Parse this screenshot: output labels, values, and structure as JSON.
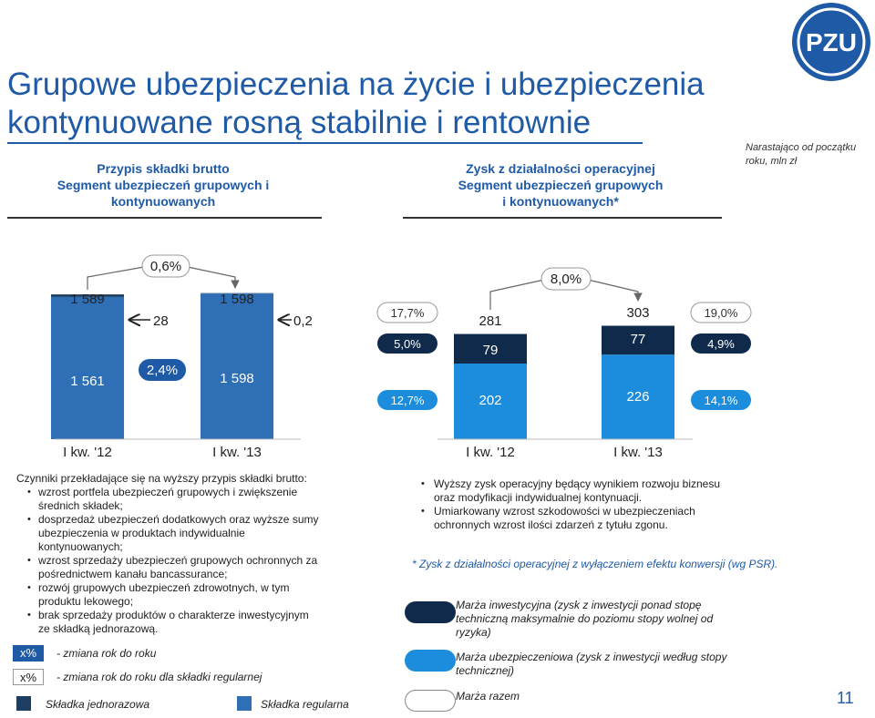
{
  "title": {
    "line1": "Grupowe ubezpieczenia na życie i ubezpieczenia",
    "line2": "kontynuowane rosną stabilnie i rentownie"
  },
  "logo": {
    "text": "PZU",
    "color": "#1f5aa6"
  },
  "note_top": "Narastająco od początku roku, mln zł",
  "sections": {
    "left": {
      "title_line1": "Przypis składki brutto",
      "title_line2": "Segment ubezpieczeń grupowych i",
      "title_line3": "kontynuowanych"
    },
    "right": {
      "title_line1": "Zysk z działalności operacyjnej",
      "title_line2": "Segment ubezpieczeń grupowych",
      "title_line3": "i kontynuowanych*"
    }
  },
  "chart_data": [
    {
      "type": "bar",
      "categories": [
        "I kw. '12",
        "I kw. '13"
      ],
      "series": [
        {
          "name": "Składka regularna",
          "values": [
            1561,
            1598
          ]
        },
        {
          "name": "Składka jednorazowa",
          "values": [
            28,
            0.2
          ]
        }
      ],
      "totals": [
        "1 589",
        "1 598"
      ],
      "value_labels": {
        "regular": [
          "1 561",
          "1 598"
        ],
        "single": [
          "28",
          "0,2"
        ]
      },
      "change_total": "0,6%",
      "change_regular": "2,4%",
      "ylabel": "",
      "xlabel": ""
    },
    {
      "type": "bar",
      "categories": [
        "I kw. '12",
        "I kw. '13"
      ],
      "series": [
        {
          "name": "Marża ubezpieczeniowa",
          "values": [
            202,
            226
          ]
        },
        {
          "name": "Marża inwestycyjna",
          "values": [
            79,
            77
          ]
        }
      ],
      "totals": [
        "281",
        "303"
      ],
      "value_labels": {
        "insurance": [
          "202",
          "226"
        ],
        "investment": [
          "79",
          "77"
        ]
      },
      "change_total": "8,0%",
      "margins_q1_12": {
        "total": "17,7%",
        "investment": "5,0%",
        "insurance": "12,7%"
      },
      "margins_q1_13": {
        "total": "19,0%",
        "investment": "4,9%",
        "insurance": "14,1%"
      },
      "ylabel": "",
      "xlabel": ""
    }
  ],
  "left_text": {
    "intro": "Czynniki przekładające się na wyższy przypis składki brutto:",
    "items": [
      "wzrost portfela ubezpieczeń grupowych i zwiększenie średnich składek;",
      "dosprzedaż ubezpieczeń dodatkowych oraz wyższe sumy ubezpieczenia w produktach indywidualnie kontynuowanych;",
      "wzrost sprzedaży ubezpieczeń grupowych ochronnych za pośrednictwem kanału bancassurance;",
      "rozwój grupowych ubezpieczeń zdrowotnych, w tym produktu lekowego;",
      "brak sprzedaży produktów o charakterze inwestycyjnym ze składką jednorazową."
    ]
  },
  "right_text": {
    "items": [
      "Wyższy zysk operacyjny będący wynikiem rozwoju biznesu oraz modyfikacji indywidualnej kontynuacji.",
      "Umiarkowany wzrost szkodowości w ubezpieczeniach ochronnych  wzrost ilości zdarzeń z tytułu zgonu."
    ]
  },
  "footnote": "* Zysk z działalności operacyjnej z wyłączeniem efektu konwersji (wg PSR).",
  "legend": {
    "change_symbol": "x%",
    "change_label": "- zmiana rok do roku",
    "change_regular_label": "- zmiana rok do roku dla składki regularnej",
    "single_premium": "Składka jednorazowa",
    "regular_premium": "Składka regularna",
    "investment_margin": "Marża inwestycyjna (zysk z inwestycji ponad stopę techniczną maksymalnie do poziomu stopy wolnej od ryzyka)",
    "insurance_margin": "Marża ubezpieczeniowa (zysk z inwestycji według stopy technicznej)",
    "total_margin": "Marża razem"
  },
  "colors": {
    "accent": "#1f5aa6",
    "regular": "#2f6fb5",
    "single": "#1d3d63",
    "insurance_margin": "#1c8ddc",
    "investment_margin": "#0f2a4a"
  },
  "page_number": "11"
}
